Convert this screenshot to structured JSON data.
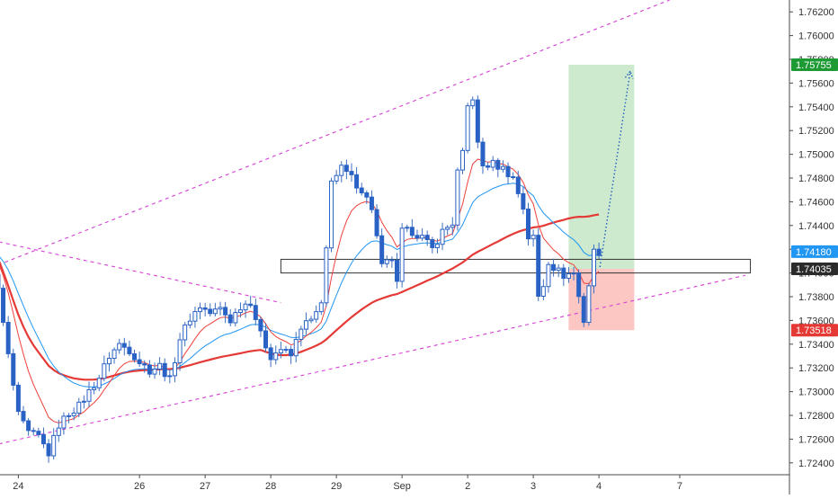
{
  "chart_data": {
    "type": "candlestick",
    "instrument_axis": "price",
    "ylim": [
      1.723,
      1.763
    ],
    "y_ticks": [
      "1.72400",
      "1.72600",
      "1.72800",
      "1.73000",
      "1.73200",
      "1.73400",
      "1.73600",
      "1.73800",
      "1.74000",
      "1.74200",
      "1.74400",
      "1.74600",
      "1.74800",
      "1.75000",
      "1.75200",
      "1.75400",
      "1.75600",
      "1.75800",
      "1.76000",
      "1.76200"
    ],
    "x_ticks": [
      {
        "label": "24",
        "bar": 6
      },
      {
        "label": "26",
        "bar": 30
      },
      {
        "label": "27",
        "bar": 43
      },
      {
        "label": "28",
        "bar": 56
      },
      {
        "label": "29",
        "bar": 69
      },
      {
        "label": "Sep",
        "bar": 82
      },
      {
        "label": "2",
        "bar": 95
      },
      {
        "label": "3",
        "bar": 108
      },
      {
        "label": "4",
        "bar": 121
      },
      {
        "label": "7",
        "bar": 137
      }
    ],
    "price_tags": [
      {
        "label": "1.75755",
        "value": 1.75755,
        "color": "#1e9a35"
      },
      {
        "label": "1.74180",
        "value": 1.7418,
        "color": "#2196f3"
      },
      {
        "label": "1.74035",
        "value": 1.74035,
        "color": "#2b2b2b"
      },
      {
        "label": "1.73518",
        "value": 1.73518,
        "color": "#e53935"
      }
    ],
    "anchors": [
      [
        0,
        1.7418
      ],
      [
        2,
        1.7385
      ],
      [
        4,
        1.733
      ],
      [
        6,
        1.728
      ],
      [
        8,
        1.7265
      ],
      [
        10,
        1.7262
      ],
      [
        12,
        1.7248
      ],
      [
        14,
        1.7272
      ],
      [
        16,
        1.7282
      ],
      [
        18,
        1.7288
      ],
      [
        20,
        1.73
      ],
      [
        22,
        1.7312
      ],
      [
        24,
        1.733
      ],
      [
        26,
        1.734
      ],
      [
        28,
        1.7335
      ],
      [
        30,
        1.7325
      ],
      [
        32,
        1.7318
      ],
      [
        34,
        1.7322
      ],
      [
        36,
        1.731
      ],
      [
        38,
        1.7345
      ],
      [
        40,
        1.7362
      ],
      [
        42,
        1.7372
      ],
      [
        44,
        1.7366
      ],
      [
        46,
        1.737
      ],
      [
        48,
        1.736
      ],
      [
        50,
        1.7372
      ],
      [
        52,
        1.7376
      ],
      [
        54,
        1.7348
      ],
      [
        56,
        1.733
      ],
      [
        58,
        1.7336
      ],
      [
        60,
        1.733
      ],
      [
        62,
        1.7355
      ],
      [
        64,
        1.736
      ],
      [
        66,
        1.7372
      ],
      [
        67,
        1.742
      ],
      [
        68,
        1.748
      ],
      [
        69,
        1.7482
      ],
      [
        70,
        1.7488
      ],
      [
        72,
        1.748
      ],
      [
        74,
        1.747
      ],
      [
        76,
        1.7455
      ],
      [
        77,
        1.743
      ],
      [
        78,
        1.7405
      ],
      [
        80,
        1.7412
      ],
      [
        81,
        1.739
      ],
      [
        82,
        1.7435
      ],
      [
        84,
        1.7435
      ],
      [
        86,
        1.743
      ],
      [
        88,
        1.742
      ],
      [
        90,
        1.7435
      ],
      [
        92,
        1.7442
      ],
      [
        93,
        1.7485
      ],
      [
        94,
        1.75
      ],
      [
        95,
        1.754
      ],
      [
        96,
        1.7548
      ],
      [
        97,
        1.7508
      ],
      [
        98,
        1.749
      ],
      [
        100,
        1.7492
      ],
      [
        102,
        1.7488
      ],
      [
        104,
        1.748
      ],
      [
        106,
        1.7455
      ],
      [
        107,
        1.743
      ],
      [
        108,
        1.743
      ],
      [
        109,
        1.738
      ],
      [
        110,
        1.739
      ],
      [
        111,
        1.741
      ],
      [
        112,
        1.7405
      ],
      [
        114,
        1.7398
      ],
      [
        116,
        1.74
      ],
      [
        118,
        1.736
      ],
      [
        119,
        1.739
      ],
      [
        120,
        1.7418
      ],
      [
        121,
        1.7418
      ]
    ],
    "ema_fast_label": "",
    "sma_label": "",
    "trendlines": [
      {
        "from": [
          -2,
          1.74
        ],
        "to": [
          135,
          1.763
        ]
      },
      {
        "from": [
          -2,
          1.743
        ],
        "to": [
          58,
          1.7375
        ]
      },
      {
        "from": [
          -2,
          1.7252
        ],
        "to": [
          150,
          1.7398
        ]
      }
    ],
    "support_box": {
      "from_bar": 58,
      "to_bar": 151,
      "low": 1.74,
      "high": 1.74115
    },
    "position": {
      "from_bar": 115,
      "to_bar": 128,
      "entry": 1.74035,
      "target": 1.75755,
      "stop": 1.73518
    },
    "projection": {
      "from": [
        121.2,
        1.7405
      ],
      "to": [
        127.2,
        1.757
      ]
    }
  }
}
